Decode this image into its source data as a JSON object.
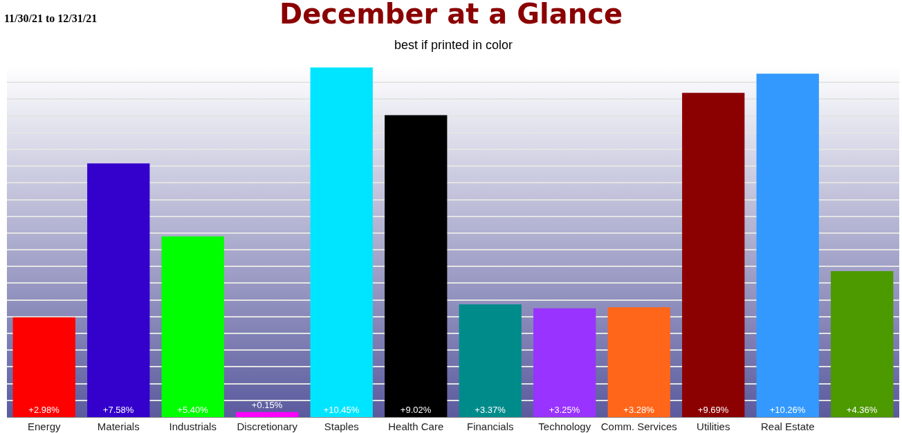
{
  "chart_data": {
    "type": "bar",
    "title": "December at a Glance",
    "subtitle": "best if printed in color",
    "annotations": [
      "11/30/21 to 12/31/21"
    ],
    "categories": [
      "Energy",
      "Materials",
      "Industrials",
      "Discretionary",
      "Staples",
      "Health Care",
      "Financials",
      "Technology",
      "Comm. Services",
      "Utilities",
      "Real Estate",
      null
    ],
    "values": [
      2.98,
      7.58,
      5.4,
      0.15,
      10.45,
      9.02,
      3.37,
      3.25,
      3.28,
      9.69,
      10.26,
      4.36
    ],
    "value_labels": [
      "+2.98%",
      "+7.58%",
      "+5.40%",
      "+0.15%",
      "+10.45%",
      "+9.02%",
      "+3.37%",
      "+3.25%",
      "+3.28%",
      "+9.69%",
      "+10.26%",
      "+4.36%"
    ],
    "colors": [
      "#ff0000",
      "#3300cc",
      "#00ff00",
      "#ff00ff",
      "#00e5ff",
      "#000000",
      "#008b8b",
      "#9933ff",
      "#ff6619",
      "#8b0000",
      "#3399ff",
      "#4c9900"
    ],
    "ylim": [
      0,
      10.5
    ],
    "yticks": [
      {
        "value": 0.5,
        "label": null
      },
      {
        "value": 1,
        "label": null
      },
      {
        "value": 1.5,
        "label": null
      },
      {
        "value": 2,
        "label": null
      },
      {
        "value": 2.5,
        "label": null
      },
      {
        "value": 3,
        "label": null
      },
      {
        "value": 3.5,
        "label": null
      },
      {
        "value": 4,
        "label": null
      },
      {
        "value": 4.5,
        "label": null
      },
      {
        "value": 5,
        "label": null
      },
      {
        "value": 5.5,
        "label": null
      },
      {
        "value": 6,
        "label": null
      },
      {
        "value": 6.5,
        "label": null
      },
      {
        "value": 7,
        "label": null
      },
      {
        "value": 7.5,
        "label": null
      },
      {
        "value": 8,
        "label": null
      },
      {
        "value": 8.5,
        "label": null
      },
      {
        "value": 9,
        "label": null
      },
      {
        "value": 9.5,
        "label": null
      },
      {
        "value": 10,
        "label": null
      },
      {
        "value": 10.5,
        "label": null
      }
    ],
    "tick_labels": "x",
    "grid": "y"
  }
}
